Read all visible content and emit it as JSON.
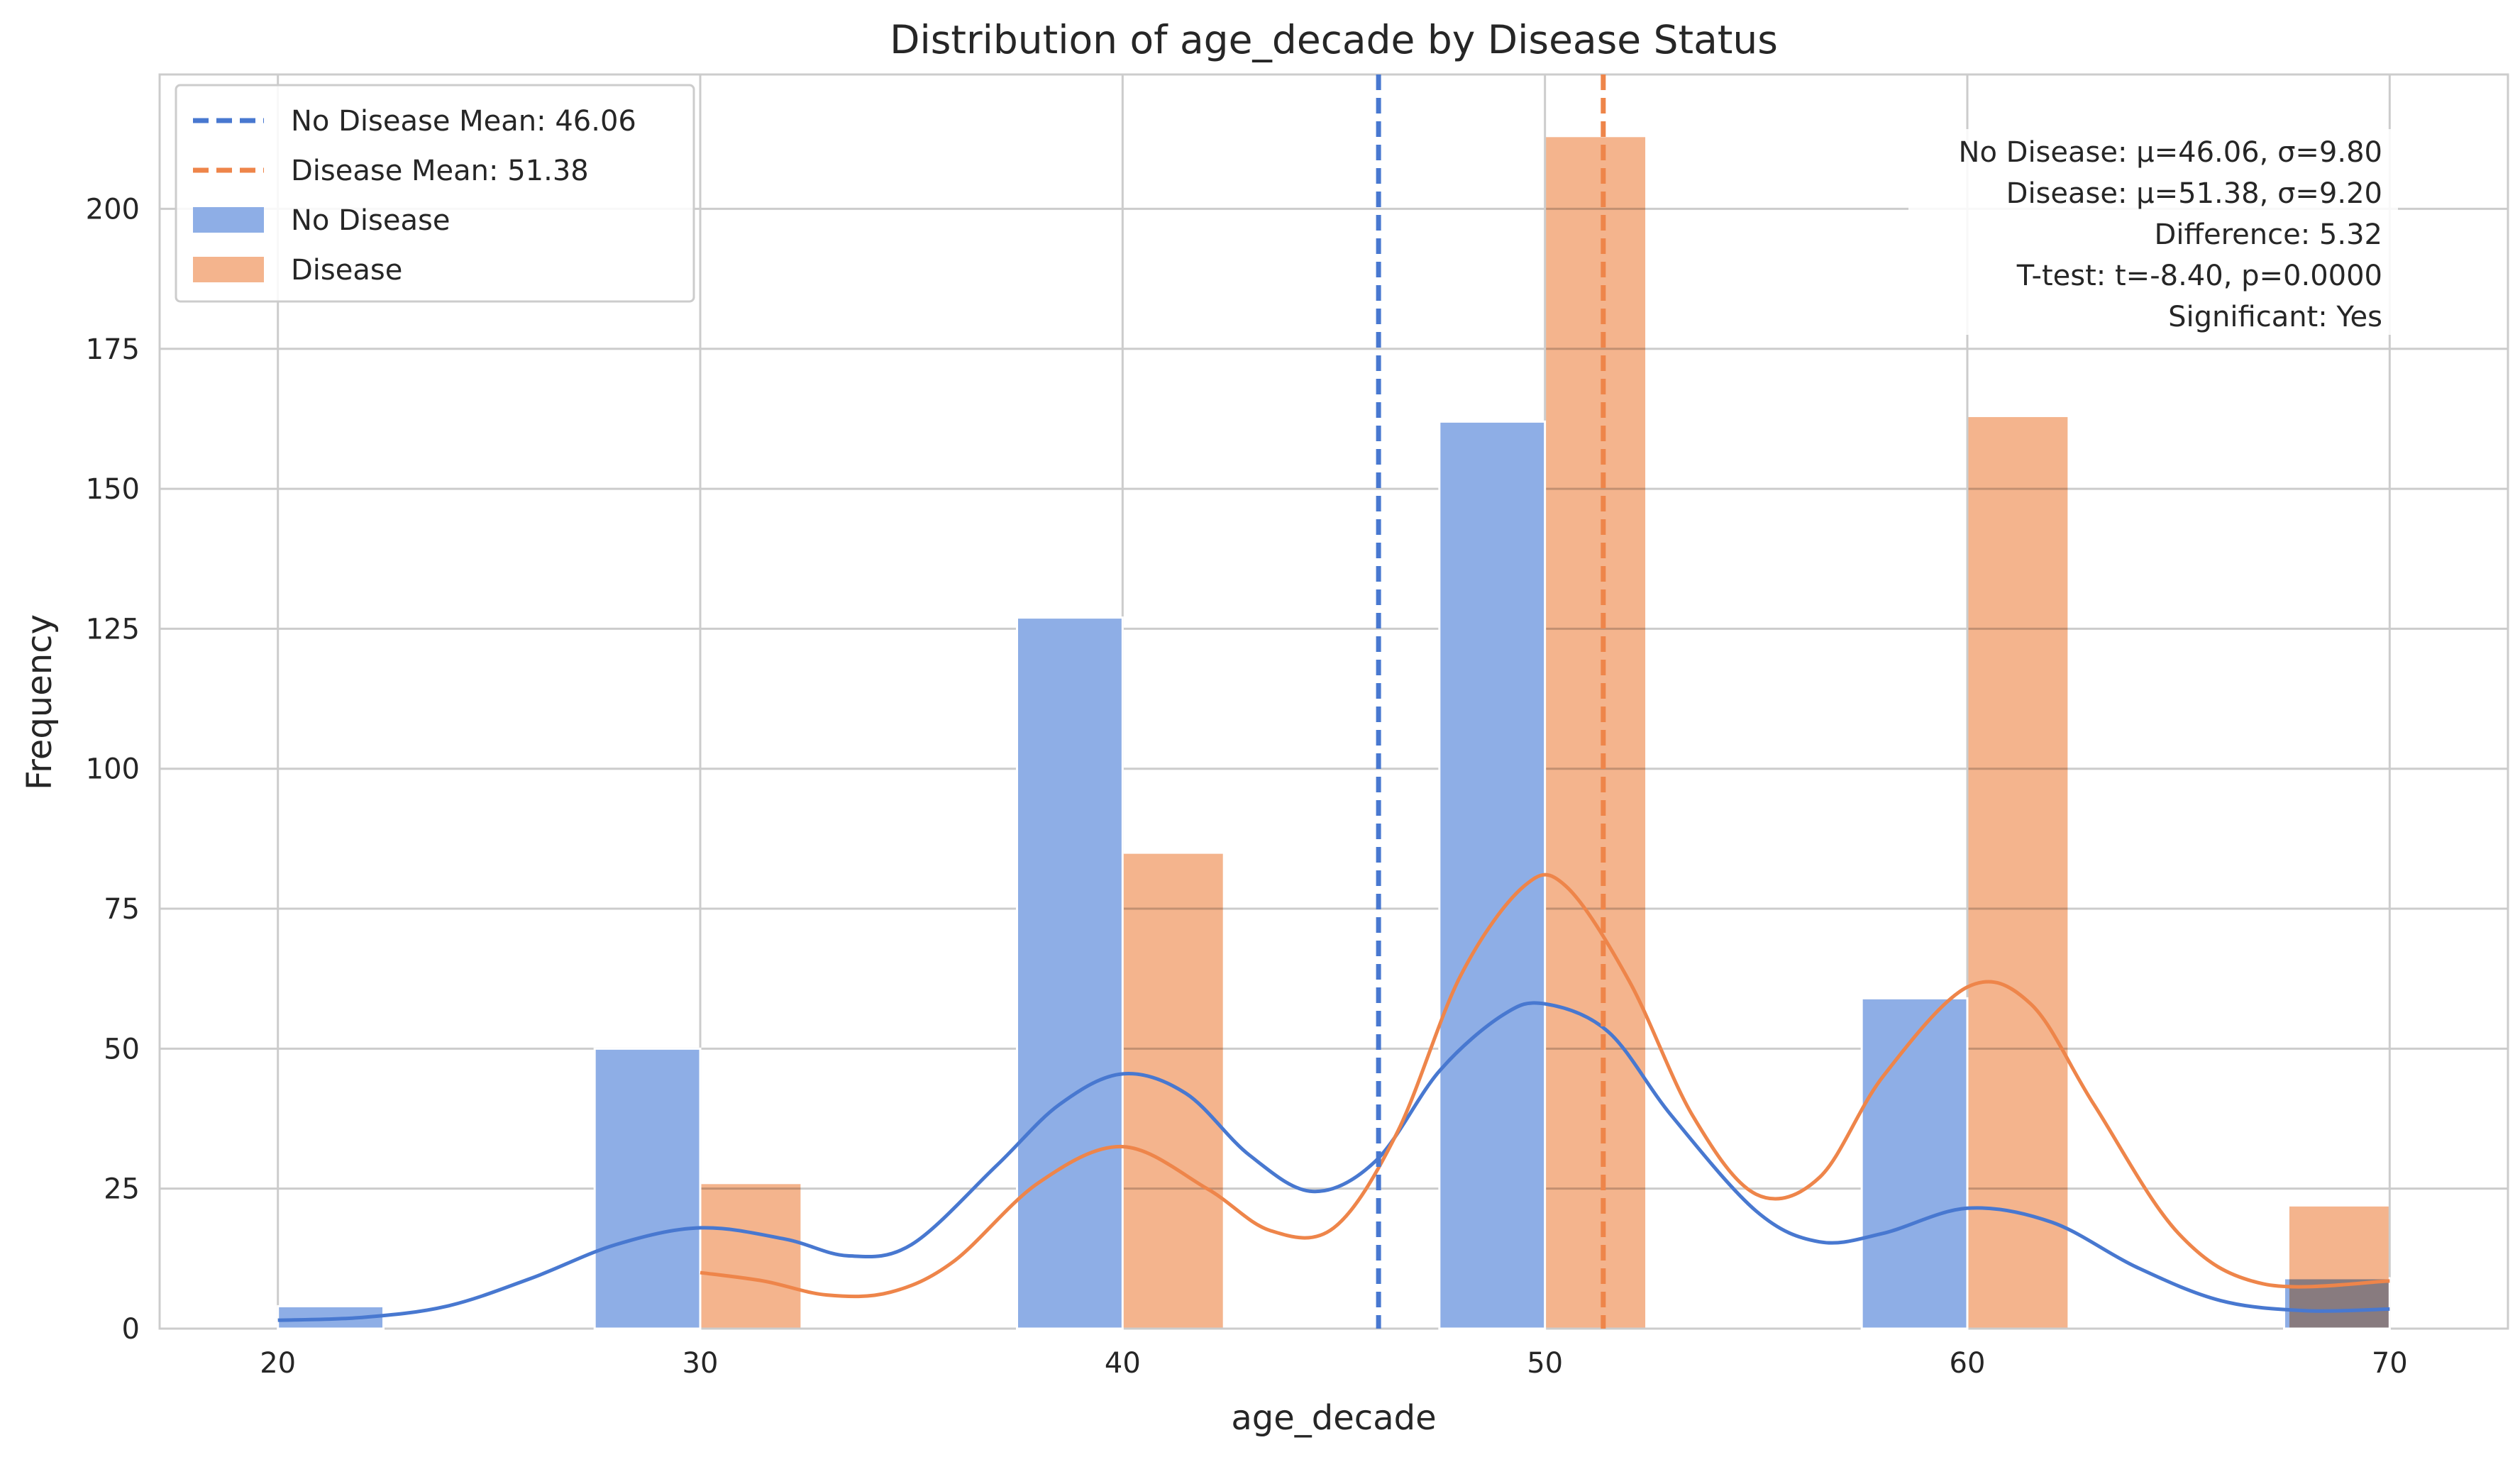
{
  "chart_data": {
    "type": "histogram",
    "title": "Distribution of age_decade by Disease Status",
    "xlabel": "age_decade",
    "ylabel": "Frequency",
    "xlim": [
      17.2,
      72.8
    ],
    "ylim": [
      0,
      224
    ],
    "xticks": [
      20,
      30,
      40,
      50,
      60,
      70
    ],
    "yticks": [
      0,
      25,
      50,
      75,
      100,
      125,
      150,
      175,
      200
    ],
    "grid": true,
    "legend_position": "top-left",
    "series": [
      {
        "name": "No Disease",
        "color": "#4878d0",
        "bin_width": 2.5,
        "bins": [
          {
            "x": 20,
            "count": 4
          },
          {
            "x": 27.5,
            "count": 50
          },
          {
            "x": 37.5,
            "count": 127
          },
          {
            "x": 47.5,
            "count": 162
          },
          {
            "x": 57.5,
            "count": 59
          },
          {
            "x": 67.5,
            "count": 9
          }
        ],
        "kde": [
          [
            20,
            1.5
          ],
          [
            22,
            2
          ],
          [
            24,
            4
          ],
          [
            26,
            9
          ],
          [
            28,
            15
          ],
          [
            30,
            18
          ],
          [
            32,
            16
          ],
          [
            33.5,
            13
          ],
          [
            35,
            15
          ],
          [
            37,
            29
          ],
          [
            38.5,
            40
          ],
          [
            40,
            45.5
          ],
          [
            41.5,
            42
          ],
          [
            43,
            31
          ],
          [
            44.5,
            24.5
          ],
          [
            46,
            30
          ],
          [
            47.5,
            46
          ],
          [
            49,
            56
          ],
          [
            50,
            58
          ],
          [
            51.5,
            53
          ],
          [
            53,
            38
          ],
          [
            55,
            21
          ],
          [
            56.5,
            15.5
          ],
          [
            58,
            17
          ],
          [
            60,
            21.5
          ],
          [
            62,
            19
          ],
          [
            64,
            11
          ],
          [
            66,
            5
          ],
          [
            68,
            3.2
          ],
          [
            70,
            3.5
          ]
        ],
        "mean": 46.06
      },
      {
        "name": "Disease",
        "color": "#ee854a",
        "bin_width": 2.4,
        "bins": [
          {
            "x": 30,
            "count": 26
          },
          {
            "x": 40,
            "count": 85
          },
          {
            "x": 50,
            "count": 213
          },
          {
            "x": 60,
            "count": 163
          },
          {
            "x": 67.6,
            "count": 22
          }
        ],
        "kde": [
          [
            30,
            10
          ],
          [
            31.5,
            8.5
          ],
          [
            33,
            6
          ],
          [
            34.5,
            6.5
          ],
          [
            36,
            12
          ],
          [
            38,
            26
          ],
          [
            40,
            32.5
          ],
          [
            42,
            25
          ],
          [
            43.5,
            17.5
          ],
          [
            45,
            18
          ],
          [
            46.5,
            35
          ],
          [
            48,
            63
          ],
          [
            49.5,
            79
          ],
          [
            50.5,
            79
          ],
          [
            52,
            62
          ],
          [
            53.5,
            38
          ],
          [
            55,
            24
          ],
          [
            56.5,
            27
          ],
          [
            58,
            45
          ],
          [
            60,
            61
          ],
          [
            61.5,
            58
          ],
          [
            63,
            40
          ],
          [
            65,
            17
          ],
          [
            67,
            8
          ],
          [
            70,
            8.5
          ]
        ],
        "mean": 51.38
      }
    ],
    "mean_lines": [
      {
        "label": "No Disease Mean: 46.06",
        "x": 46.06,
        "color": "#4878d0"
      },
      {
        "label": "Disease Mean: 51.38",
        "x": 51.38,
        "color": "#ee854a"
      }
    ],
    "legend": [
      {
        "label": "No Disease Mean: 46.06",
        "kind": "dashed-line",
        "color": "#4878d0"
      },
      {
        "label": "Disease Mean: 51.38",
        "kind": "dashed-line",
        "color": "#ee854a"
      },
      {
        "label": "No Disease",
        "kind": "patch",
        "color": "#8eaee6"
      },
      {
        "label": "Disease",
        "kind": "patch",
        "color": "#f4b48d"
      }
    ],
    "stats_box": [
      "No Disease: μ=46.06, σ=9.80",
      "Disease: μ=51.38, σ=9.20",
      "Difference: 5.32",
      "T-test: t=-8.40, p=0.0000",
      "Significant: Yes"
    ]
  }
}
